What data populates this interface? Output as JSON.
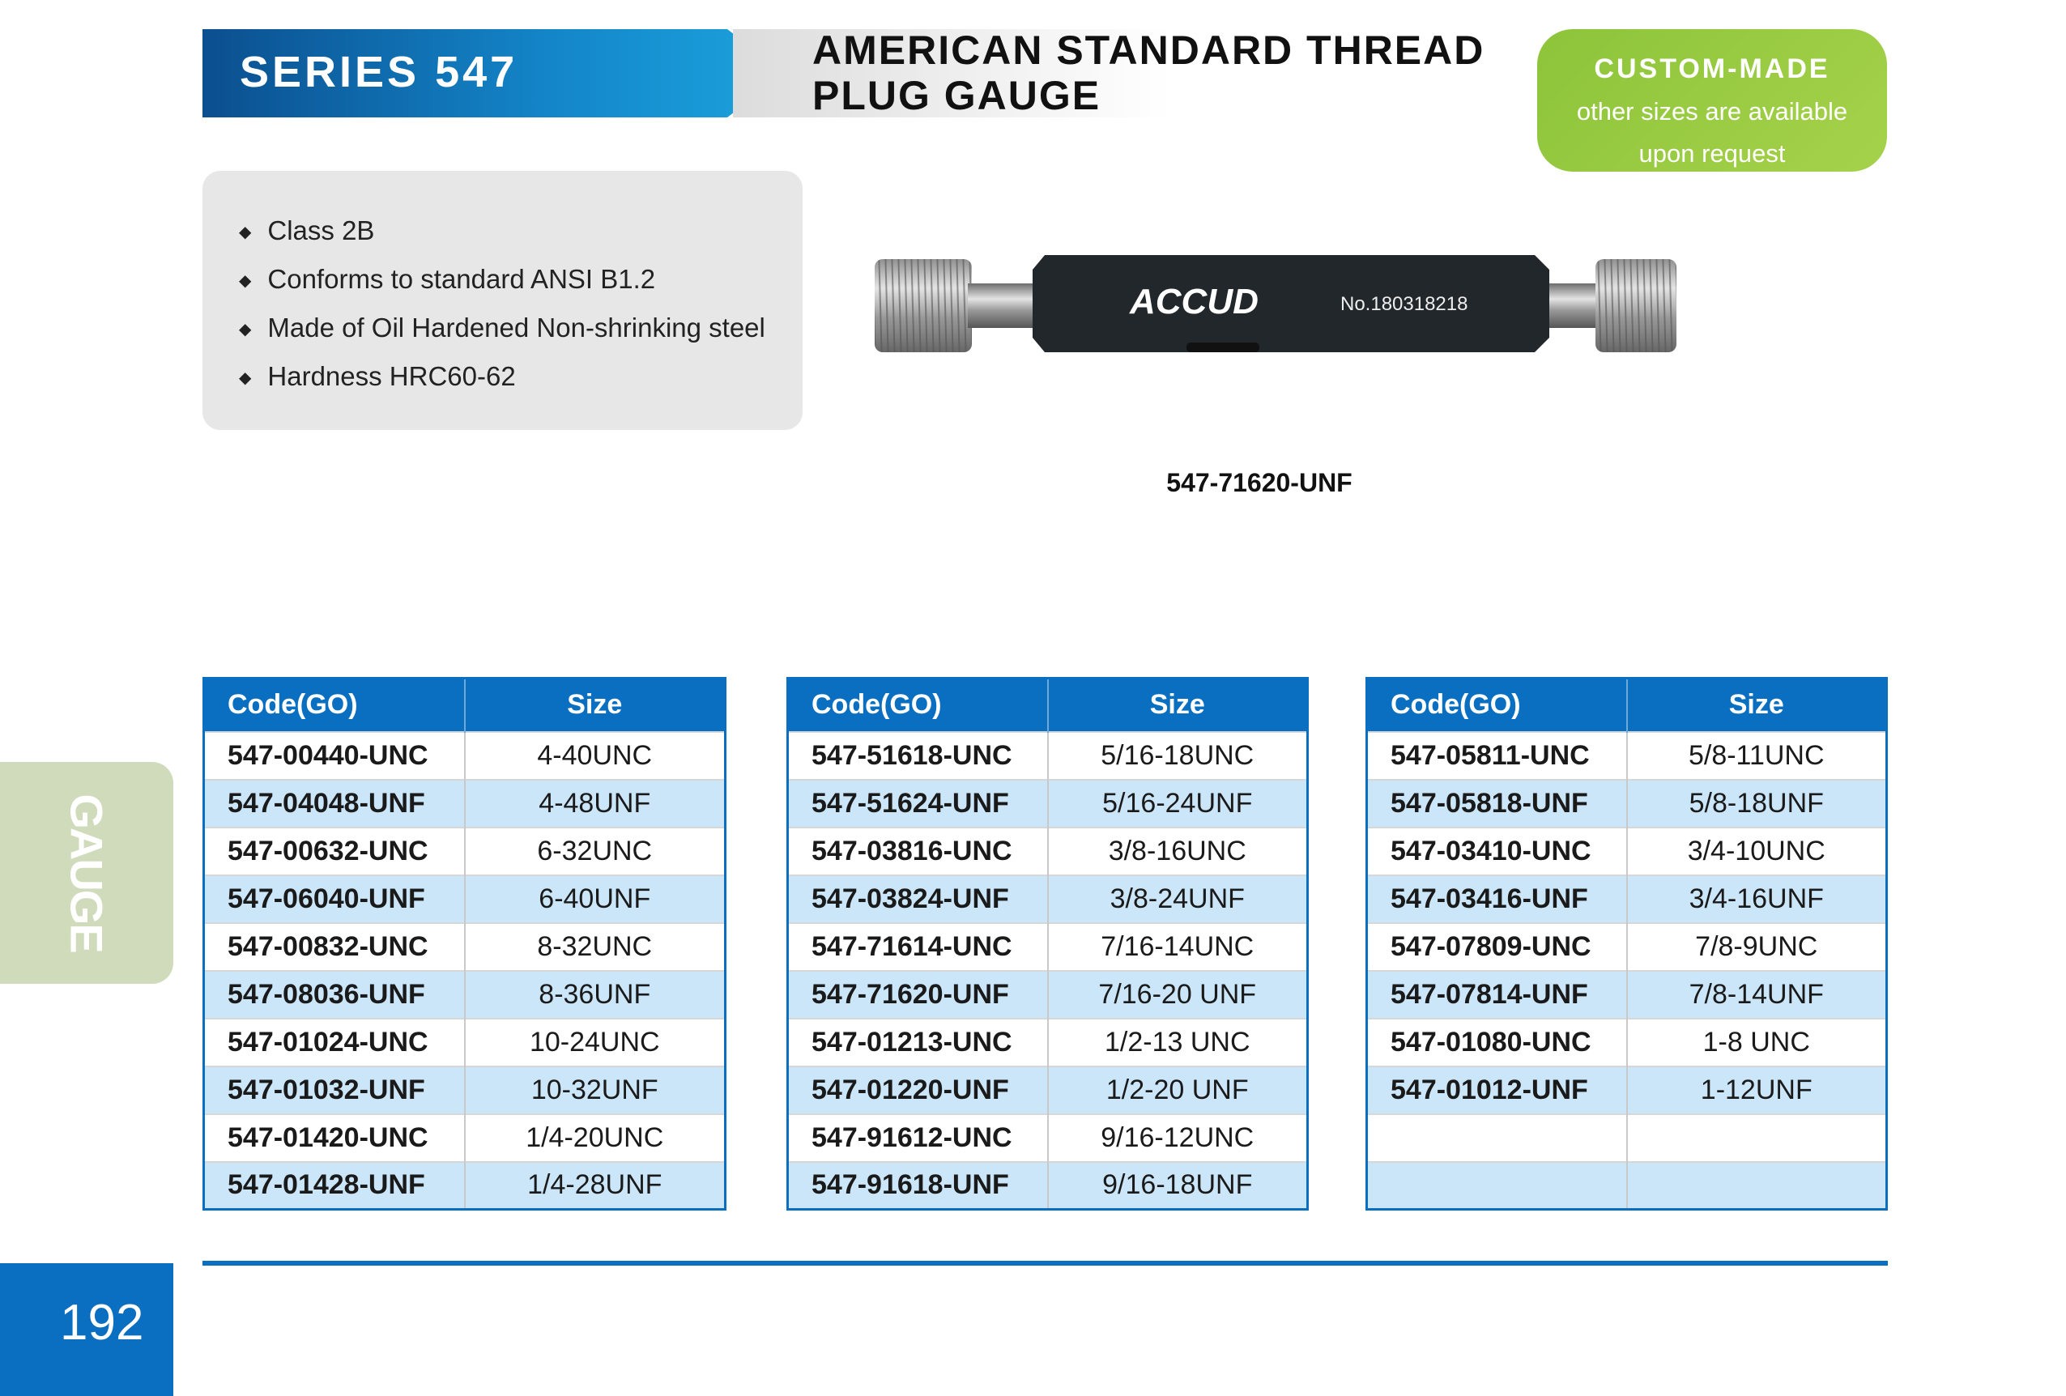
{
  "header": {
    "series": "SERIES 547",
    "title_line1": "AMERICAN STANDARD THREAD",
    "title_line2": "PLUG GAUGE"
  },
  "badge": {
    "title": "CUSTOM-MADE",
    "line1": "other sizes are available",
    "line2": "upon request"
  },
  "features": [
    "Class 2B",
    "Conforms to standard ANSI B1.2",
    "Made of Oil Hardened Non-shrinking steel",
    "Hardness HRC60-62"
  ],
  "product_image": {
    "brand": "ACCUD",
    "serial": "No.180318218"
  },
  "caption": "547-71620-UNF",
  "table_headers": {
    "code": "Code(GO)",
    "size": "Size"
  },
  "tables": [
    [
      [
        "547-00440-UNC",
        "4-40UNC"
      ],
      [
        "547-04048-UNF",
        "4-48UNF"
      ],
      [
        "547-00632-UNC",
        "6-32UNC"
      ],
      [
        "547-06040-UNF",
        "6-40UNF"
      ],
      [
        "547-00832-UNC",
        "8-32UNC"
      ],
      [
        "547-08036-UNF",
        "8-36UNF"
      ],
      [
        "547-01024-UNC",
        "10-24UNC"
      ],
      [
        "547-01032-UNF",
        "10-32UNF"
      ],
      [
        "547-01420-UNC",
        "1/4-20UNC"
      ],
      [
        "547-01428-UNF",
        "1/4-28UNF"
      ]
    ],
    [
      [
        "547-51618-UNC",
        "5/16-18UNC"
      ],
      [
        "547-51624-UNF",
        "5/16-24UNF"
      ],
      [
        "547-03816-UNC",
        "3/8-16UNC"
      ],
      [
        "547-03824-UNF",
        "3/8-24UNF"
      ],
      [
        "547-71614-UNC",
        "7/16-14UNC"
      ],
      [
        "547-71620-UNF",
        "7/16-20 UNF"
      ],
      [
        "547-01213-UNC",
        "1/2-13 UNC"
      ],
      [
        "547-01220-UNF",
        "1/2-20 UNF"
      ],
      [
        "547-91612-UNC",
        "9/16-12UNC"
      ],
      [
        "547-91618-UNF",
        "9/16-18UNF"
      ]
    ],
    [
      [
        "547-05811-UNC",
        "5/8-11UNC"
      ],
      [
        "547-05818-UNF",
        "5/8-18UNF"
      ],
      [
        "547-03410-UNC",
        "3/4-10UNC"
      ],
      [
        "547-03416-UNF",
        "3/4-16UNF"
      ],
      [
        "547-07809-UNC",
        "7/8-9UNC"
      ],
      [
        "547-07814-UNF",
        "7/8-14UNF"
      ],
      [
        "547-01080-UNC",
        "1-8 UNC"
      ],
      [
        "547-01012-UNF",
        "1-12UNF"
      ],
      [
        "",
        ""
      ],
      [
        "",
        ""
      ]
    ]
  ],
  "side_tab": "GAUGE",
  "page_number": "192",
  "colors": {
    "blue": "#0a6fc0",
    "alt_row": "#cbe6f8",
    "green": "#8cc43a",
    "side_tab": "#d0dbbc"
  }
}
